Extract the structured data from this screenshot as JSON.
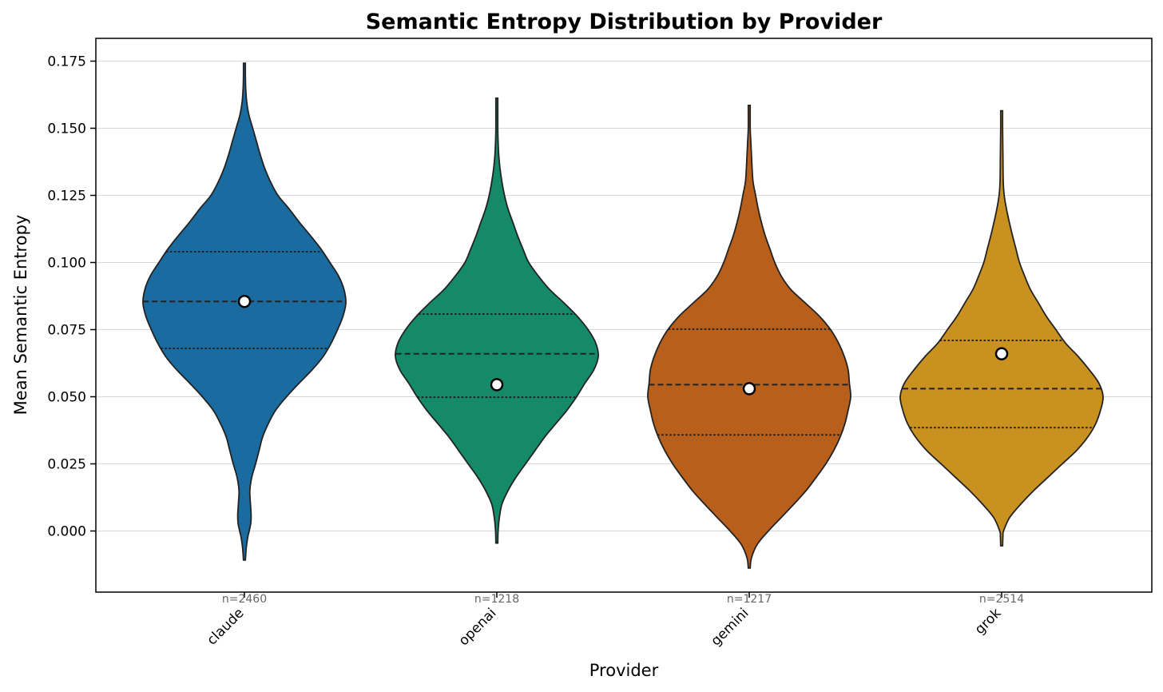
{
  "chart_data": {
    "type": "violin",
    "title": "Semantic Entropy Distribution by Provider",
    "xlabel": "Provider",
    "ylabel": "Mean Semantic Entropy",
    "ylim": [
      -0.022,
      0.176
    ],
    "yticks": [
      0.0,
      0.025,
      0.05,
      0.075,
      0.1,
      0.125,
      0.15,
      0.175
    ],
    "ytick_labels": [
      "0.000",
      "0.025",
      "0.050",
      "0.075",
      "0.100",
      "0.125",
      "0.150",
      "0.175"
    ],
    "grid": "horizontal",
    "categories": [
      "claude",
      "openai",
      "gemini",
      "grok"
    ],
    "series": [
      {
        "name": "claude",
        "color": "#1a6ba0",
        "count_label": "n=2460",
        "min": -0.0108,
        "max": 0.1742,
        "q1": 0.068,
        "median": 0.0855,
        "q3": 0.104,
        "mean": 0.0855,
        "density": [
          [
            -0.0108,
            0.003
          ],
          [
            -0.006,
            0.006
          ],
          [
            -0.002,
            0.011
          ],
          [
            0.0,
            0.015
          ],
          [
            0.003,
            0.02
          ],
          [
            0.006,
            0.021
          ],
          [
            0.01,
            0.019
          ],
          [
            0.015,
            0.017
          ],
          [
            0.02,
            0.023
          ],
          [
            0.025,
            0.035
          ],
          [
            0.03,
            0.046
          ],
          [
            0.035,
            0.057
          ],
          [
            0.04,
            0.075
          ],
          [
            0.045,
            0.098
          ],
          [
            0.05,
            0.132
          ],
          [
            0.055,
            0.171
          ],
          [
            0.06,
            0.212
          ],
          [
            0.065,
            0.247
          ],
          [
            0.07,
            0.272
          ],
          [
            0.075,
            0.292
          ],
          [
            0.08,
            0.309
          ],
          [
            0.085,
            0.318
          ],
          [
            0.09,
            0.312
          ],
          [
            0.095,
            0.295
          ],
          [
            0.1,
            0.268
          ],
          [
            0.105,
            0.24
          ],
          [
            0.11,
            0.207
          ],
          [
            0.115,
            0.172
          ],
          [
            0.12,
            0.14
          ],
          [
            0.125,
            0.105
          ],
          [
            0.13,
            0.082
          ],
          [
            0.135,
            0.064
          ],
          [
            0.14,
            0.05
          ],
          [
            0.145,
            0.038
          ],
          [
            0.15,
            0.026
          ],
          [
            0.155,
            0.014
          ],
          [
            0.16,
            0.007
          ],
          [
            0.165,
            0.004
          ],
          [
            0.17,
            0.003
          ],
          [
            0.1742,
            0.003
          ]
        ]
      },
      {
        "name": "openai",
        "color": "#148a69",
        "count_label": "n=1218",
        "min": -0.0045,
        "max": 0.1612,
        "q1": 0.0498,
        "median": 0.066,
        "q3": 0.0808,
        "mean": 0.0545,
        "density": [
          [
            -0.0045,
            0.003
          ],
          [
            0.0,
            0.004
          ],
          [
            0.005,
            0.008
          ],
          [
            0.01,
            0.016
          ],
          [
            0.015,
            0.035
          ],
          [
            0.02,
            0.06
          ],
          [
            0.025,
            0.09
          ],
          [
            0.03,
            0.12
          ],
          [
            0.035,
            0.15
          ],
          [
            0.04,
            0.185
          ],
          [
            0.045,
            0.22
          ],
          [
            0.05,
            0.25
          ],
          [
            0.055,
            0.276
          ],
          [
            0.06,
            0.304
          ],
          [
            0.065,
            0.318
          ],
          [
            0.07,
            0.31
          ],
          [
            0.075,
            0.286
          ],
          [
            0.08,
            0.252
          ],
          [
            0.085,
            0.21
          ],
          [
            0.09,
            0.165
          ],
          [
            0.095,
            0.13
          ],
          [
            0.1,
            0.1
          ],
          [
            0.105,
            0.082
          ],
          [
            0.11,
            0.065
          ],
          [
            0.115,
            0.05
          ],
          [
            0.12,
            0.035
          ],
          [
            0.125,
            0.024
          ],
          [
            0.13,
            0.016
          ],
          [
            0.135,
            0.01
          ],
          [
            0.14,
            0.006
          ],
          [
            0.145,
            0.004
          ],
          [
            0.15,
            0.003
          ],
          [
            0.1612,
            0.003
          ]
        ]
      },
      {
        "name": "gemini",
        "color": "#b95f1c",
        "count_label": "n=1217",
        "min": -0.0138,
        "max": 0.1585,
        "q1": 0.0358,
        "median": 0.0545,
        "q3": 0.0752,
        "mean": 0.053,
        "density": [
          [
            -0.0138,
            0.003
          ],
          [
            -0.01,
            0.007
          ],
          [
            -0.005,
            0.025
          ],
          [
            0.0,
            0.06
          ],
          [
            0.005,
            0.1
          ],
          [
            0.01,
            0.14
          ],
          [
            0.015,
            0.178
          ],
          [
            0.02,
            0.21
          ],
          [
            0.025,
            0.24
          ],
          [
            0.03,
            0.265
          ],
          [
            0.035,
            0.285
          ],
          [
            0.04,
            0.3
          ],
          [
            0.045,
            0.31
          ],
          [
            0.05,
            0.318
          ],
          [
            0.055,
            0.314
          ],
          [
            0.06,
            0.31
          ],
          [
            0.065,
            0.298
          ],
          [
            0.07,
            0.28
          ],
          [
            0.075,
            0.255
          ],
          [
            0.08,
            0.22
          ],
          [
            0.085,
            0.175
          ],
          [
            0.09,
            0.13
          ],
          [
            0.095,
            0.1
          ],
          [
            0.1,
            0.08
          ],
          [
            0.105,
            0.065
          ],
          [
            0.11,
            0.05
          ],
          [
            0.115,
            0.038
          ],
          [
            0.12,
            0.028
          ],
          [
            0.125,
            0.02
          ],
          [
            0.13,
            0.012
          ],
          [
            0.135,
            0.009
          ],
          [
            0.14,
            0.007
          ],
          [
            0.145,
            0.005
          ],
          [
            0.15,
            0.003
          ],
          [
            0.1585,
            0.003
          ]
        ]
      },
      {
        "name": "grok",
        "color": "#c99120",
        "count_label": "n=2514",
        "min": -0.0055,
        "max": 0.1565,
        "q1": 0.0385,
        "median": 0.053,
        "q3": 0.071,
        "mean": 0.066,
        "density": [
          [
            -0.0055,
            0.003
          ],
          [
            -0.002,
            0.004
          ],
          [
            0.0,
            0.006
          ],
          [
            0.005,
            0.025
          ],
          [
            0.01,
            0.06
          ],
          [
            0.015,
            0.1
          ],
          [
            0.02,
            0.145
          ],
          [
            0.025,
            0.19
          ],
          [
            0.03,
            0.235
          ],
          [
            0.035,
            0.27
          ],
          [
            0.04,
            0.295
          ],
          [
            0.045,
            0.31
          ],
          [
            0.05,
            0.318
          ],
          [
            0.055,
            0.305
          ],
          [
            0.06,
            0.275
          ],
          [
            0.065,
            0.24
          ],
          [
            0.07,
            0.2
          ],
          [
            0.075,
            0.17
          ],
          [
            0.08,
            0.14
          ],
          [
            0.085,
            0.115
          ],
          [
            0.09,
            0.09
          ],
          [
            0.095,
            0.072
          ],
          [
            0.1,
            0.056
          ],
          [
            0.105,
            0.045
          ],
          [
            0.11,
            0.034
          ],
          [
            0.115,
            0.024
          ],
          [
            0.12,
            0.015
          ],
          [
            0.125,
            0.008
          ],
          [
            0.13,
            0.005
          ],
          [
            0.14,
            0.004
          ],
          [
            0.15,
            0.003
          ],
          [
            0.1565,
            0.003
          ]
        ]
      }
    ]
  }
}
